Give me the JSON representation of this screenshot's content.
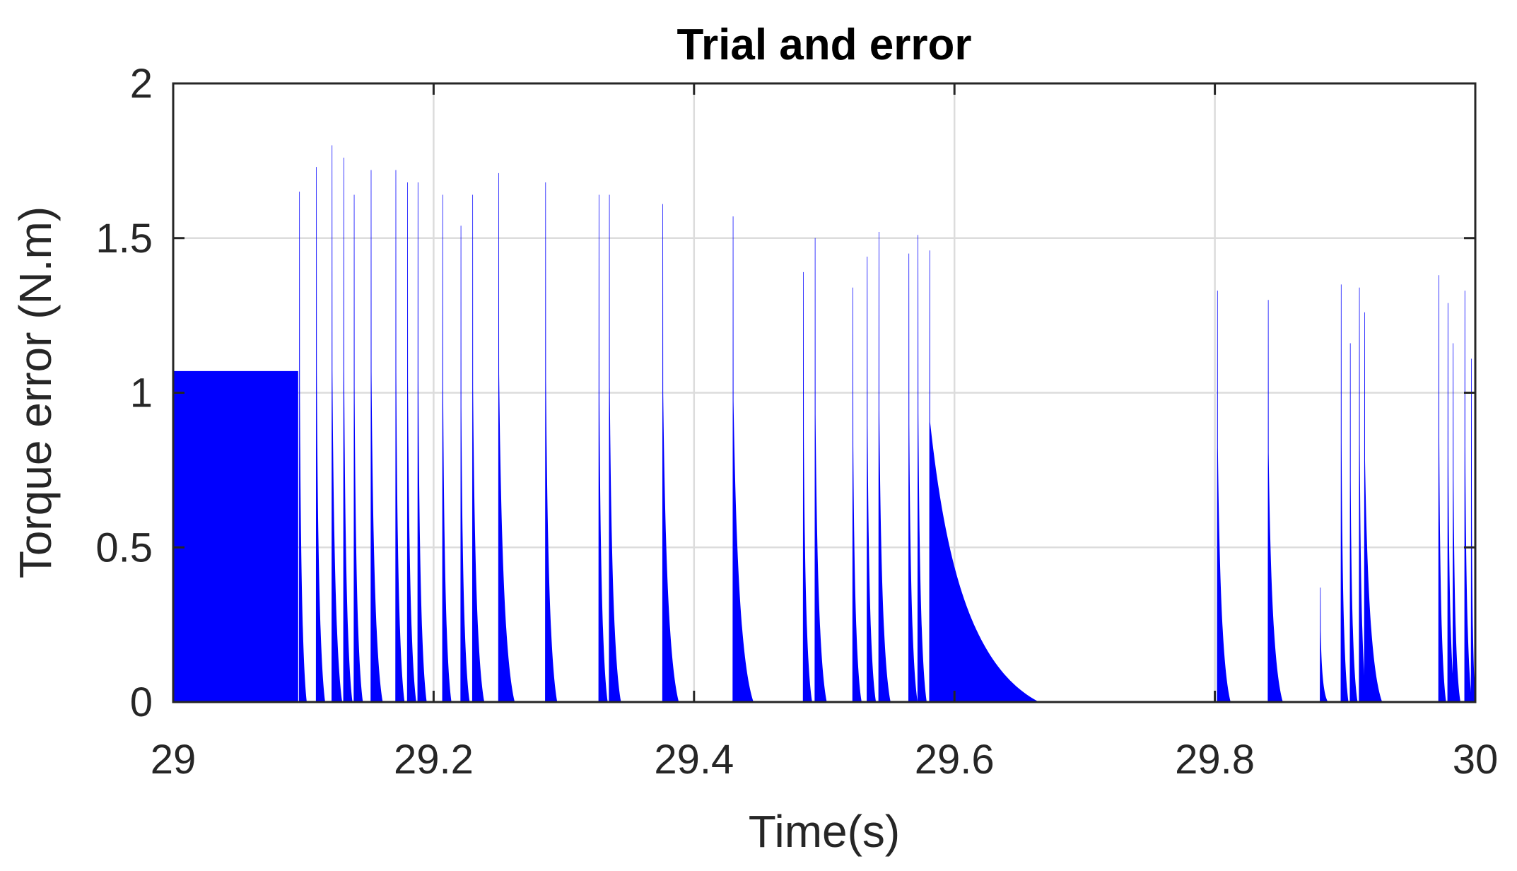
{
  "chart_data": {
    "type": "area",
    "title": "Trial and error",
    "xlabel": "Time(s)",
    "ylabel": "Torque error (N.m)",
    "xlim": [
      29,
      30
    ],
    "ylim": [
      0,
      2
    ],
    "xticks": [
      29,
      29.2,
      29.4,
      29.6,
      29.8,
      30
    ],
    "xtick_labels": [
      "29",
      "29.2",
      "29.4",
      "29.6",
      "29.8",
      "30"
    ],
    "yticks": [
      0,
      0.5,
      1,
      1.5,
      2
    ],
    "ytick_labels": [
      "0",
      "0.5",
      "1",
      "1.5",
      "2"
    ],
    "grid": true,
    "series": [
      {
        "color": "#0000ff",
        "steady_block": {
          "x_start": 29,
          "x_end": 29.096,
          "value": 1.07
        },
        "spikes": [
          {
            "x": 29.097,
            "peak": 1.65,
            "tail": 0.5
          },
          {
            "x": 29.11,
            "peak": 1.73,
            "tail": 0.6
          },
          {
            "x": 29.122,
            "peak": 1.8,
            "tail": 0.7
          },
          {
            "x": 29.131,
            "peak": 1.76,
            "tail": 0.6
          },
          {
            "x": 29.139,
            "peak": 1.64,
            "tail": 0.6
          },
          {
            "x": 29.152,
            "peak": 1.72,
            "tail": 0.8
          },
          {
            "x": 29.171,
            "peak": 1.72,
            "tail": 0.6
          },
          {
            "x": 29.18,
            "peak": 1.68,
            "tail": 0.6
          },
          {
            "x": 29.188,
            "peak": 1.68,
            "tail": 0.6
          },
          {
            "x": 29.207,
            "peak": 1.64,
            "tail": 0.6
          },
          {
            "x": 29.221,
            "peak": 1.54,
            "tail": 0.6
          },
          {
            "x": 29.23,
            "peak": 1.64,
            "tail": 0.8
          },
          {
            "x": 29.25,
            "peak": 1.71,
            "tail": 1.1
          },
          {
            "x": 29.286,
            "peak": 1.68,
            "tail": 0.8
          },
          {
            "x": 29.327,
            "peak": 1.64,
            "tail": 0.6
          },
          {
            "x": 29.335,
            "peak": 1.64,
            "tail": 0.8
          },
          {
            "x": 29.376,
            "peak": 1.61,
            "tail": 1.1
          },
          {
            "x": 29.43,
            "peak": 1.57,
            "tail": 1.4
          },
          {
            "x": 29.484,
            "peak": 1.39,
            "tail": 0.6
          },
          {
            "x": 29.493,
            "peak": 1.5,
            "tail": 0.8
          },
          {
            "x": 29.522,
            "peak": 1.34,
            "tail": 0.6
          },
          {
            "x": 29.533,
            "peak": 1.44,
            "tail": 0.6
          },
          {
            "x": 29.542,
            "peak": 1.52,
            "tail": 0.8
          },
          {
            "x": 29.565,
            "peak": 1.45,
            "tail": 0.6
          },
          {
            "x": 29.572,
            "peak": 1.51,
            "tail": 0.6
          },
          {
            "x": 29.581,
            "peak": 1.46,
            "tail": 7.5
          },
          {
            "x": 29.802,
            "peak": 1.33,
            "tail": 0.9
          },
          {
            "x": 29.841,
            "peak": 1.3,
            "tail": 1.0
          },
          {
            "x": 29.881,
            "peak": 0.37,
            "tail": 0.5
          },
          {
            "x": 29.897,
            "peak": 1.35,
            "tail": 0.5
          },
          {
            "x": 29.904,
            "peak": 1.16,
            "tail": 0.5
          },
          {
            "x": 29.911,
            "peak": 1.34,
            "tail": 0.5
          },
          {
            "x": 29.915,
            "peak": 1.26,
            "tail": 1.2
          },
          {
            "x": 29.972,
            "peak": 1.38,
            "tail": 0.5
          },
          {
            "x": 29.979,
            "peak": 1.29,
            "tail": 0.5
          },
          {
            "x": 29.983,
            "peak": 1.16,
            "tail": 0.5
          },
          {
            "x": 29.992,
            "peak": 1.33,
            "tail": 0.5
          },
          {
            "x": 29.997,
            "peak": 1.11,
            "tail": 0.3
          }
        ]
      }
    ]
  }
}
